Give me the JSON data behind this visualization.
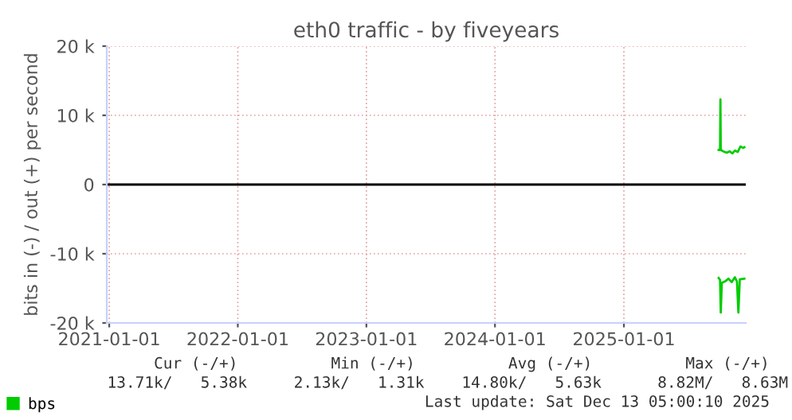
{
  "chart_data": {
    "type": "line",
    "title": "eth0 traffic - by fiveyears",
    "ylabel": "bits in (-) / out (+) per second",
    "xlim": [
      "2020-12-25",
      "2025-12-13"
    ],
    "xticks": [
      "2021-01-01",
      "2022-01-01",
      "2023-01-01",
      "2024-01-01",
      "2025-01-01"
    ],
    "ylim": [
      -20000,
      20000
    ],
    "yticks": [
      {
        "value": -20000,
        "label": "-20 k"
      },
      {
        "value": -10000,
        "label": "-10 k"
      },
      0,
      {
        "value": 10000,
        "label": "10 k"
      },
      {
        "value": 20000,
        "label": "20 k"
      }
    ],
    "grid": true,
    "legend": "bottom left",
    "marker": "none",
    "line_style": "solid",
    "ref_lines": [
      {
        "axis": "y",
        "value": 0,
        "color": "#000000"
      }
    ],
    "series": [
      {
        "name": "bps",
        "color": "#00cc00",
        "x": [
          "2025-09-27",
          "2025-10-01",
          "2025-10-02",
          "2025-10-03",
          "2025-10-10",
          "2025-10-20",
          "2025-10-28",
          "2025-11-05",
          "2025-11-12",
          "2025-11-20",
          "2025-11-28",
          "2025-12-05",
          "2025-12-09"
        ],
        "values": [
          5000,
          5000,
          12300,
          5000,
          4800,
          4600,
          4800,
          4500,
          4900,
          4700,
          5500,
          5300,
          5400
        ]
      },
      {
        "color": "#00cc00",
        "x": [
          "2025-09-27",
          "2025-10-01",
          "2025-10-03",
          "2025-10-06",
          "2025-10-15",
          "2025-10-25",
          "2025-11-03",
          "2025-11-12",
          "2025-11-18",
          "2025-11-22",
          "2025-11-26",
          "2025-12-09"
        ],
        "values": [
          -13500,
          -13800,
          -18500,
          -14200,
          -14000,
          -13600,
          -14100,
          -13400,
          -14000,
          -18500,
          -13700,
          -13600
        ]
      }
    ],
    "annotations": [
      "          Cur (-/+)          Min (-/+)          Avg (-/+)          Max (-/+)",
      "     13.71k/   5.38k     2.13k/   1.31k    14.80k/   5.63k      8.82M/   8.63M",
      "Last update: Sat Dec 13 05:00:10 2025"
    ]
  }
}
